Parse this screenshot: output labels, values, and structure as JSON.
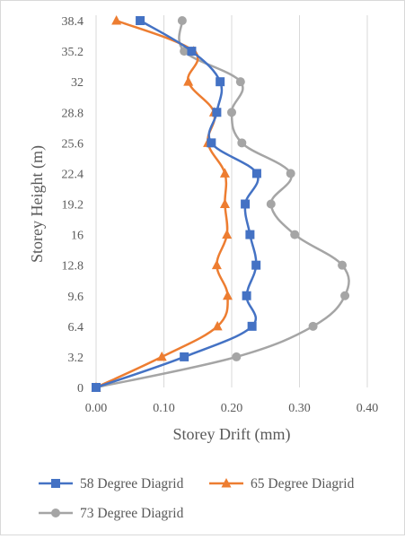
{
  "chart_data": {
    "type": "line",
    "orientation": "vertical-profile",
    "title": "",
    "xlabel": "Storey Drift (mm)",
    "ylabel": "Storey Height (m)",
    "xlim": [
      0,
      0.4
    ],
    "x_ticks": [
      "0.00",
      "0.10",
      "0.20",
      "0.30",
      "0.40"
    ],
    "y_categories": [
      "0",
      "3.2",
      "6.4",
      "9.6",
      "12.8",
      "16",
      "19.2",
      "22.4",
      "25.6",
      "28.8",
      "32",
      "35.2",
      "38.4"
    ],
    "grid": "vertical",
    "legend_position": "bottom",
    "series": [
      {
        "name": "58 Degree Diagrid",
        "color": "#4472c4",
        "marker": "square",
        "values": [
          0.0,
          0.13,
          0.23,
          0.222,
          0.236,
          0.227,
          0.22,
          0.237,
          0.17,
          0.178,
          0.183,
          0.141,
          0.065
        ]
      },
      {
        "name": "65 Degree Diagrid",
        "color": "#ed7d31",
        "marker": "triangle",
        "values": [
          0.0,
          0.097,
          0.179,
          0.194,
          0.178,
          0.193,
          0.19,
          0.19,
          0.165,
          0.174,
          0.136,
          0.144,
          0.03
        ]
      },
      {
        "name": "73 Degree Diagrid",
        "color": "#a5a5a5",
        "marker": "circle",
        "values": [
          0.0,
          0.207,
          0.32,
          0.367,
          0.363,
          0.293,
          0.258,
          0.287,
          0.215,
          0.2,
          0.213,
          0.13,
          0.127
        ]
      }
    ]
  }
}
